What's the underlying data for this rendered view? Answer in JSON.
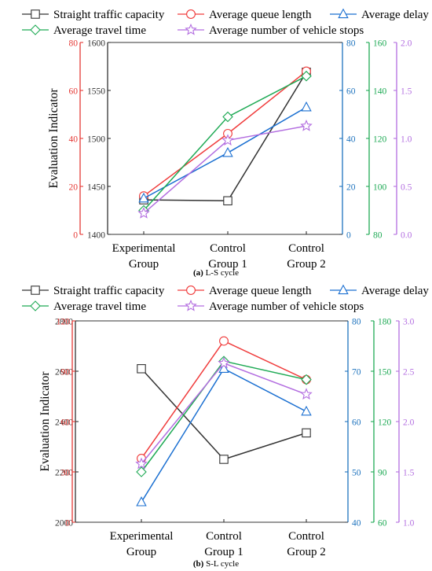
{
  "chart_data": [
    {
      "type": "line",
      "caption_label": "(a)",
      "caption_text": " L-S cycle",
      "ylabel": "Evaluation Indicator",
      "categories": [
        [
          "Experimental",
          "Group"
        ],
        [
          "Control",
          "Group 1"
        ],
        [
          "Control",
          "Group 2"
        ]
      ],
      "series": [
        {
          "name": "Straight traffic capacity",
          "color": "#333333",
          "marker": "square",
          "axis": 0,
          "values": [
            1436,
            1435,
            1569
          ]
        },
        {
          "name": "Average queue length",
          "color": "#f03c3c",
          "marker": "circle",
          "axis": 1,
          "values": [
            16,
            42,
            68
          ]
        },
        {
          "name": "Average delay",
          "color": "#1a6fd1",
          "marker": "triangle",
          "axis": 2,
          "values": [
            15,
            34,
            53
          ]
        },
        {
          "name": "Average travel time",
          "color": "#1faa55",
          "marker": "diamond",
          "axis": 3,
          "values": [
            90,
            129,
            146
          ]
        },
        {
          "name": "Average number of vehicle stops",
          "color": "#b36ee0",
          "marker": "star",
          "axis": 4,
          "values": [
            0.22,
            0.98,
            1.13
          ]
        }
      ],
      "axes": [
        {
          "name": "left-inner",
          "color": "#333333",
          "min": 1400,
          "max": 1600,
          "ticks": [
            1400,
            1450,
            1500,
            1550,
            1600
          ]
        },
        {
          "name": "left-outer",
          "color": "#e53935",
          "min": 0,
          "max": 80,
          "ticks": [
            0,
            20,
            40,
            60,
            80
          ]
        },
        {
          "name": "right-1",
          "color": "#1e73be",
          "min": 0,
          "max": 80,
          "ticks": [
            0,
            20,
            40,
            60,
            80
          ]
        },
        {
          "name": "right-2",
          "color": "#1faa55",
          "min": 80,
          "max": 160,
          "ticks": [
            80,
            100,
            120,
            140,
            160
          ]
        },
        {
          "name": "right-3",
          "color": "#b36ee0",
          "min": 0.0,
          "max": 2.0,
          "ticks": [
            "0.0",
            "0.5",
            "1.0",
            "1.5",
            "2.0"
          ]
        }
      ]
    },
    {
      "type": "line",
      "caption_label": "(b)",
      "caption_text": " S-L cycle",
      "ylabel": "Evaluation Indicator",
      "categories": [
        [
          "Experimental",
          "Group"
        ],
        [
          "Control",
          "Group 1"
        ],
        [
          "Control",
          "Group 2"
        ]
      ],
      "series": [
        {
          "name": "Straight traffic capacity",
          "color": "#333333",
          "marker": "square",
          "axis": 0,
          "values": [
            2610,
            2250,
            2355
          ]
        },
        {
          "name": "Average queue length",
          "color": "#f03c3c",
          "marker": "circle",
          "axis": 1,
          "values": [
            38,
            108,
            85
          ]
        },
        {
          "name": "Average delay",
          "color": "#1a6fd1",
          "marker": "triangle",
          "axis": 2,
          "values": [
            44,
            70.5,
            62
          ]
        },
        {
          "name": "Average travel time",
          "color": "#1faa55",
          "marker": "diamond",
          "axis": 3,
          "values": [
            90,
            156,
            145
          ]
        },
        {
          "name": "Average number of vehicle stops",
          "color": "#b36ee0",
          "marker": "star",
          "axis": 4,
          "values": [
            1.58,
            2.58,
            2.27
          ]
        }
      ],
      "axes": [
        {
          "name": "left-inner",
          "color": "#333333",
          "min": 2000,
          "max": 2800,
          "ticks": [
            2000,
            2200,
            2400,
            2600,
            2800
          ]
        },
        {
          "name": "left-outer",
          "color": "#e53935",
          "min": 0,
          "max": 120,
          "ticks": [
            0,
            30,
            60,
            90,
            120
          ]
        },
        {
          "name": "right-1",
          "color": "#1e73be",
          "min": 40,
          "max": 80,
          "ticks": [
            40,
            50,
            60,
            70,
            80
          ]
        },
        {
          "name": "right-2",
          "color": "#1faa55",
          "min": 60,
          "max": 180,
          "ticks": [
            60,
            90,
            120,
            150,
            180
          ]
        },
        {
          "name": "right-3",
          "color": "#b36ee0",
          "min": 1.0,
          "max": 3.0,
          "ticks": [
            "1.0",
            "1.5",
            "2.0",
            "2.5",
            "3.0"
          ]
        }
      ]
    }
  ]
}
